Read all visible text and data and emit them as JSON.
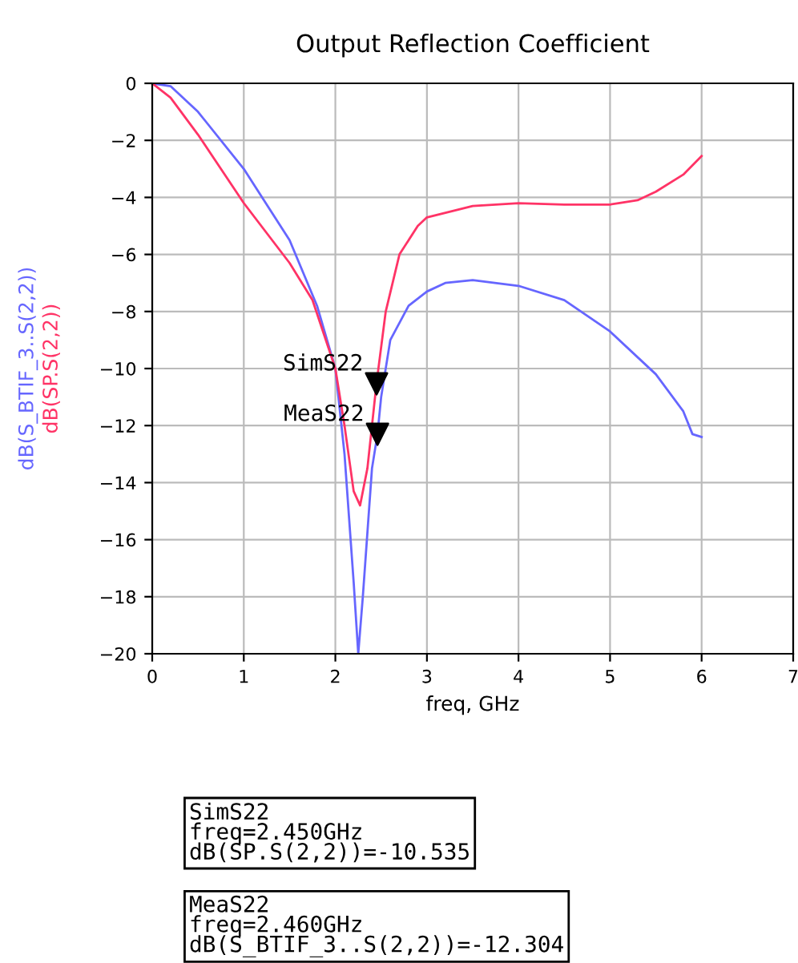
{
  "chart_data": {
    "type": "line",
    "title": "Output Reflection Coefficient",
    "xlabel": "freq, GHz",
    "xlim": [
      0,
      7
    ],
    "xticks": [
      0,
      1,
      2,
      3,
      4,
      5,
      6,
      7
    ],
    "ylim": [
      -20,
      0
    ],
    "yticks": [
      -20,
      -18,
      -16,
      -14,
      -12,
      -10,
      -8,
      -6,
      -4,
      -2,
      0
    ],
    "grid": true,
    "series": [
      {
        "name": "dB(S_BTIF_3..S(2,2))",
        "color": "#6666ff",
        "x": [
          0,
          0.2,
          0.5,
          1.0,
          1.5,
          1.8,
          2.0,
          2.1,
          2.2,
          2.25,
          2.3,
          2.4,
          2.46,
          2.5,
          2.6,
          2.8,
          3.0,
          3.2,
          3.5,
          4.0,
          4.5,
          5.0,
          5.5,
          5.8,
          5.9,
          6.0
        ],
        "values": [
          0,
          -0.1,
          -1.0,
          -3.0,
          -5.5,
          -7.8,
          -10,
          -13,
          -17.5,
          -20,
          -18,
          -13.5,
          -12.3,
          -11,
          -9,
          -7.8,
          -7.3,
          -7.0,
          -6.9,
          -7.1,
          -7.6,
          -8.7,
          -10.2,
          -11.5,
          -12.3,
          -12.4
        ]
      },
      {
        "name": "dB(SP.S(2,2))",
        "color": "#ff3366",
        "x": [
          0,
          0.2,
          0.5,
          1.0,
          1.5,
          1.75,
          2.0,
          2.1,
          2.2,
          2.27,
          2.35,
          2.45,
          2.55,
          2.7,
          2.9,
          3.0,
          3.5,
          4.0,
          4.5,
          5.0,
          5.3,
          5.5,
          5.8,
          6.0
        ],
        "values": [
          0,
          -0.5,
          -1.8,
          -4.2,
          -6.3,
          -7.6,
          -10,
          -12,
          -14.3,
          -14.8,
          -13.5,
          -10.5,
          -8,
          -6,
          -5,
          -4.7,
          -4.3,
          -4.2,
          -4.25,
          -4.25,
          -4.1,
          -3.8,
          -3.2,
          -2.55
        ]
      },
      {
        "type": "scatter",
        "marker": "triangle",
        "color": "#000000",
        "x": [
          2.45,
          2.46
        ],
        "values": [
          -10.535,
          -12.304
        ]
      }
    ],
    "annotations": [
      {
        "text": "SimS22",
        "x": 2.45,
        "y": -10.535
      },
      {
        "text": "MeaS22",
        "x": 2.46,
        "y": -12.304
      },
      "SimS22\nfreq=2.450GHz\ndB(SP.S(2,2))=-10.535",
      "MeaS22\nfreq=2.460GHz\ndB(S_BTIF_3..S(2,2))=-12.304"
    ]
  }
}
